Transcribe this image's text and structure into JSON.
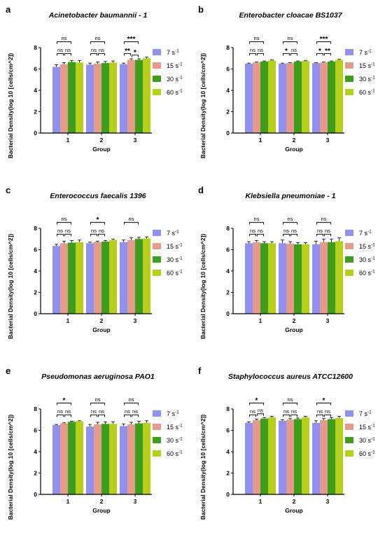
{
  "chart_data": [
    {
      "panel": "a",
      "type": "bar",
      "title": "Acinetobacter baumannii - 1",
      "xlabel": "Group",
      "ylabel": "Bacterial Density(log 10 [cells/cm^2])",
      "ylim": [
        0,
        8
      ],
      "yticks": [
        "0",
        "2",
        "4",
        "6",
        "8"
      ],
      "categories": [
        "1",
        "2",
        "3"
      ],
      "series": [
        {
          "name": "7 s",
          "values": [
            6.2,
            6.4,
            6.45
          ],
          "errors": [
            0.2,
            0.15,
            0.1
          ]
        },
        {
          "name": "15 s",
          "values": [
            6.45,
            6.5,
            6.85
          ],
          "errors": [
            0.15,
            0.15,
            0.1
          ]
        },
        {
          "name": "30 s",
          "values": [
            6.65,
            6.55,
            6.85
          ],
          "errors": [
            0.15,
            0.15,
            0.1
          ]
        },
        {
          "name": "60 s",
          "values": [
            6.6,
            6.6,
            7.0
          ],
          "errors": [
            0.2,
            0.15,
            0.1
          ]
        }
      ],
      "annotations": [
        {
          "group": 0,
          "bars": [
            0,
            1
          ],
          "label": "ns",
          "level": 1
        },
        {
          "group": 0,
          "bars": [
            1,
            2
          ],
          "label": "ns",
          "level": 1
        },
        {
          "group": 0,
          "bars": [
            0,
            2
          ],
          "label": "ns",
          "level": 2
        },
        {
          "group": 1,
          "bars": [
            0,
            1
          ],
          "label": "ns",
          "level": 1
        },
        {
          "group": 1,
          "bars": [
            1,
            2
          ],
          "label": "ns",
          "level": 1
        },
        {
          "group": 1,
          "bars": [
            0,
            2
          ],
          "label": "ns",
          "level": 2
        },
        {
          "group": 2,
          "bars": [
            0,
            1
          ],
          "label": "**",
          "level": 1
        },
        {
          "group": 2,
          "bars": [
            1,
            2
          ],
          "label": "*",
          "level": 0
        },
        {
          "group": 2,
          "bars": [
            0,
            2
          ],
          "label": "***",
          "level": 2
        }
      ]
    },
    {
      "panel": "b",
      "type": "bar",
      "title": "Enterobacter cloacae BS1037",
      "xlabel": "Group",
      "ylabel": "Bacterial Density(log 10 [cells/cm^2])",
      "ylim": [
        0,
        8
      ],
      "yticks": [
        "0",
        "2",
        "4",
        "6",
        "8"
      ],
      "categories": [
        "1",
        "2",
        "3"
      ],
      "series": [
        {
          "name": "7 s",
          "values": [
            6.5,
            6.5,
            6.55
          ],
          "errors": [
            0.05,
            0.05,
            0.05
          ]
        },
        {
          "name": "15 s",
          "values": [
            6.6,
            6.55,
            6.6
          ],
          "errors": [
            0.05,
            0.05,
            0.05
          ]
        },
        {
          "name": "30 s",
          "values": [
            6.7,
            6.7,
            6.7
          ],
          "errors": [
            0.05,
            0.05,
            0.05
          ]
        },
        {
          "name": "60 s",
          "values": [
            6.8,
            6.75,
            6.85
          ],
          "errors": [
            0.05,
            0.05,
            0.05
          ]
        }
      ],
      "annotations": [
        {
          "group": 0,
          "bars": [
            0,
            1
          ],
          "label": "ns",
          "level": 1
        },
        {
          "group": 0,
          "bars": [
            1,
            2
          ],
          "label": "ns",
          "level": 1
        },
        {
          "group": 0,
          "bars": [
            0,
            2
          ],
          "label": "ns",
          "level": 2
        },
        {
          "group": 1,
          "bars": [
            0,
            1
          ],
          "label": "*",
          "level": 1
        },
        {
          "group": 1,
          "bars": [
            1,
            2
          ],
          "label": "ns",
          "level": 1
        },
        {
          "group": 1,
          "bars": [
            0,
            2
          ],
          "label": "ns",
          "level": 2
        },
        {
          "group": 2,
          "bars": [
            0,
            1
          ],
          "label": "*",
          "level": 1
        },
        {
          "group": 2,
          "bars": [
            1,
            2
          ],
          "label": "**",
          "level": 1
        },
        {
          "group": 2,
          "bars": [
            0,
            2
          ],
          "label": "***",
          "level": 2
        }
      ]
    },
    {
      "panel": "c",
      "type": "bar",
      "title": "Enterococcus faecalis 1396",
      "xlabel": "Group",
      "ylabel": "Bacterial Density(log 10 [cells/cm^2])",
      "ylim": [
        0,
        8
      ],
      "yticks": [
        "0",
        "2",
        "4",
        "6",
        "8"
      ],
      "categories": [
        "1",
        "2",
        "3"
      ],
      "series": [
        {
          "name": "7 s",
          "values": [
            6.35,
            6.6,
            6.7
          ],
          "errors": [
            0.15,
            0.1,
            0.2
          ]
        },
        {
          "name": "15 s",
          "values": [
            6.6,
            6.7,
            6.9
          ],
          "errors": [
            0.2,
            0.1,
            0.2
          ]
        },
        {
          "name": "30 s",
          "values": [
            6.65,
            6.75,
            7.0
          ],
          "errors": [
            0.2,
            0.1,
            0.15
          ]
        },
        {
          "name": "60 s",
          "values": [
            6.7,
            6.9,
            7.05
          ],
          "errors": [
            0.2,
            0.1,
            0.15
          ]
        }
      ],
      "annotations": [
        {
          "group": 0,
          "bars": [
            0,
            1
          ],
          "label": "ns",
          "level": 1
        },
        {
          "group": 0,
          "bars": [
            1,
            2
          ],
          "label": "ns",
          "level": 1
        },
        {
          "group": 0,
          "bars": [
            0,
            2
          ],
          "label": "ns",
          "level": 2
        },
        {
          "group": 1,
          "bars": [
            0,
            1
          ],
          "label": "ns",
          "level": 1
        },
        {
          "group": 1,
          "bars": [
            1,
            2
          ],
          "label": "ns",
          "level": 1
        },
        {
          "group": 1,
          "bars": [
            0,
            2
          ],
          "label": "*",
          "level": 2
        },
        {
          "group": 2,
          "bars": [
            0,
            2
          ],
          "label": "ns",
          "level": 2
        }
      ]
    },
    {
      "panel": "d",
      "type": "bar",
      "title": "Klebsiella pneumoniae - 1",
      "xlabel": "Group",
      "ylabel": "Bacterial Density(log 10 [cells/cm^2])",
      "ylim": [
        0,
        8
      ],
      "yticks": [
        "0",
        "2",
        "4",
        "6",
        "8"
      ],
      "categories": [
        "1",
        "2",
        "3"
      ],
      "series": [
        {
          "name": "7 s",
          "values": [
            6.6,
            6.6,
            6.5
          ],
          "errors": [
            0.15,
            0.3,
            0.3
          ]
        },
        {
          "name": "15 s",
          "values": [
            6.7,
            6.55,
            6.7
          ],
          "errors": [
            0.15,
            0.2,
            0.3
          ]
        },
        {
          "name": "30 s",
          "values": [
            6.6,
            6.5,
            6.7
          ],
          "errors": [
            0.15,
            0.15,
            0.3
          ]
        },
        {
          "name": "60 s",
          "values": [
            6.6,
            6.5,
            6.8
          ],
          "errors": [
            0.15,
            0.15,
            0.3
          ]
        }
      ],
      "annotations": [
        {
          "group": 0,
          "bars": [
            0,
            1
          ],
          "label": "ns",
          "level": 1
        },
        {
          "group": 0,
          "bars": [
            1,
            2
          ],
          "label": "ns",
          "level": 1
        },
        {
          "group": 0,
          "bars": [
            0,
            2
          ],
          "label": "ns",
          "level": 2
        },
        {
          "group": 1,
          "bars": [
            0,
            1
          ],
          "label": "ns",
          "level": 1
        },
        {
          "group": 1,
          "bars": [
            1,
            2
          ],
          "label": "ns",
          "level": 1
        },
        {
          "group": 1,
          "bars": [
            0,
            2
          ],
          "label": "ns",
          "level": 2
        },
        {
          "group": 2,
          "bars": [
            0,
            1
          ],
          "label": "ns",
          "level": 1
        },
        {
          "group": 2,
          "bars": [
            1,
            2
          ],
          "label": "ns",
          "level": 1
        },
        {
          "group": 2,
          "bars": [
            0,
            2
          ],
          "label": "ns",
          "level": 2
        }
      ]
    },
    {
      "panel": "e",
      "type": "bar",
      "title": "Pseudomonas aeruginosa PAO1",
      "xlabel": "Group",
      "ylabel": "Bacterial Density(log 10 [cells/cm^2])",
      "ylim": [
        0,
        8
      ],
      "yticks": [
        "0",
        "2",
        "4",
        "6",
        "8"
      ],
      "categories": [
        "1",
        "2",
        "3"
      ],
      "series": [
        {
          "name": "7 s",
          "values": [
            6.5,
            6.35,
            6.4
          ],
          "errors": [
            0.05,
            0.2,
            0.2
          ]
        },
        {
          "name": "15 s",
          "values": [
            6.65,
            6.55,
            6.55
          ],
          "errors": [
            0.05,
            0.2,
            0.2
          ]
        },
        {
          "name": "30 s",
          "values": [
            6.8,
            6.6,
            6.65
          ],
          "errors": [
            0.05,
            0.2,
            0.2
          ]
        },
        {
          "name": "60 s",
          "values": [
            6.85,
            6.6,
            6.7
          ],
          "errors": [
            0.05,
            0.2,
            0.2
          ]
        }
      ],
      "annotations": [
        {
          "group": 0,
          "bars": [
            0,
            1
          ],
          "label": "ns",
          "level": 1
        },
        {
          "group": 0,
          "bars": [
            1,
            2
          ],
          "label": "ns",
          "level": 1
        },
        {
          "group": 0,
          "bars": [
            0,
            2
          ],
          "label": "*",
          "level": 2
        },
        {
          "group": 1,
          "bars": [
            0,
            1
          ],
          "label": "ns",
          "level": 1
        },
        {
          "group": 1,
          "bars": [
            1,
            2
          ],
          "label": "ns",
          "level": 1
        },
        {
          "group": 1,
          "bars": [
            0,
            2
          ],
          "label": "ns",
          "level": 2
        },
        {
          "group": 2,
          "bars": [
            0,
            1
          ],
          "label": "ns",
          "level": 1
        },
        {
          "group": 2,
          "bars": [
            1,
            2
          ],
          "label": "ns",
          "level": 1
        },
        {
          "group": 2,
          "bars": [
            0,
            2
          ],
          "label": "ns",
          "level": 2
        }
      ]
    },
    {
      "panel": "f",
      "type": "bar",
      "title": "Staphylococcus aureus ATCC12600",
      "xlabel": "Group",
      "ylabel": "Bacterial Density(log 10 [cells/cm^2])",
      "ylim": [
        0,
        8
      ],
      "yticks": [
        "0",
        "2",
        "4",
        "6",
        "8"
      ],
      "categories": [
        "1",
        "2",
        "3"
      ],
      "series": [
        {
          "name": "7 s",
          "values": [
            6.7,
            6.9,
            6.7
          ],
          "errors": [
            0.1,
            0.1,
            0.2
          ]
        },
        {
          "name": "15 s",
          "values": [
            6.95,
            7.0,
            6.95
          ],
          "errors": [
            0.1,
            0.1,
            0.15
          ]
        },
        {
          "name": "30 s",
          "values": [
            7.1,
            7.05,
            7.05
          ],
          "errors": [
            0.1,
            0.1,
            0.15
          ]
        },
        {
          "name": "60 s",
          "values": [
            7.2,
            7.2,
            7.15
          ],
          "errors": [
            0.1,
            0.1,
            0.15
          ]
        }
      ],
      "annotations": [
        {
          "group": 0,
          "bars": [
            0,
            1
          ],
          "label": "ns",
          "level": 1
        },
        {
          "group": 0,
          "bars": [
            1,
            2
          ],
          "label": "ns",
          "level": 0
        },
        {
          "group": 0,
          "bars": [
            0,
            2
          ],
          "label": "*",
          "level": 2
        },
        {
          "group": 1,
          "bars": [
            0,
            1
          ],
          "label": "ns",
          "level": 1
        },
        {
          "group": 1,
          "bars": [
            1,
            2
          ],
          "label": "ns",
          "level": 1
        },
        {
          "group": 1,
          "bars": [
            0,
            2
          ],
          "label": "ns",
          "level": 2
        },
        {
          "group": 2,
          "bars": [
            0,
            1
          ],
          "label": "ns",
          "level": 1
        },
        {
          "group": 2,
          "bars": [
            1,
            2
          ],
          "label": "ns",
          "level": 1
        },
        {
          "group": 2,
          "bars": [
            0,
            2
          ],
          "label": "*",
          "level": 2
        }
      ]
    }
  ],
  "legend": {
    "entries": [
      "7 s",
      "15 s",
      "30 s",
      "60 s"
    ],
    "superscript": "-1",
    "placement": "right"
  },
  "colors": {
    "series": [
      "#9090f0",
      "#e59a8c",
      "#3d9e1c",
      "#b5cf1a"
    ],
    "axis": "#000000"
  }
}
